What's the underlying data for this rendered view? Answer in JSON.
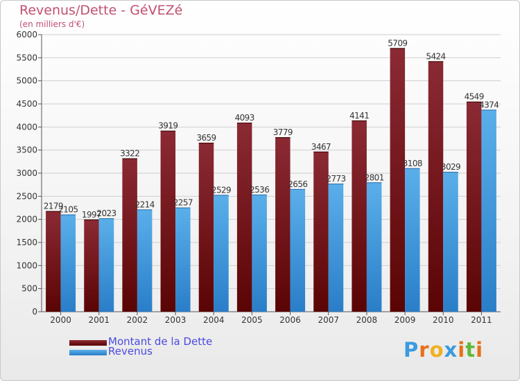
{
  "title": "Revenus/Dette - GéVEZé",
  "subtitle": "(en milliers d'€)",
  "logo": {
    "text": "Proxiti",
    "letter_colors": [
      "#3a9be0",
      "#e8701a",
      "#f0b020",
      "#3a9be0",
      "#e8701a",
      "#62b83a",
      "#e8701a"
    ]
  },
  "colors": {
    "dette_top": "#8b2a34",
    "dette_bottom": "#5a0404",
    "revenus_top": "#5aafea",
    "revenus_bottom": "#2a7ec8",
    "grid": "#cfcfcf",
    "title": "#c24f6f",
    "legend_text": "#4a4ae0"
  },
  "chart_data": {
    "type": "bar",
    "categories": [
      "2000",
      "2001",
      "2002",
      "2003",
      "2004",
      "2005",
      "2006",
      "2007",
      "2008",
      "2009",
      "2010",
      "2011"
    ],
    "series": [
      {
        "name": "Montant de la Dette",
        "values": [
          2179,
          1997,
          3322,
          3919,
          3659,
          4093,
          3779,
          3467,
          4141,
          5709,
          5424,
          4549
        ],
        "labels": [
          "2179",
          "1997",
          "3322",
          "3919",
          "3659",
          "4093",
          "3779",
          "3467",
          "4141",
          "5709",
          "5424",
          "4549"
        ]
      },
      {
        "name": "Revenus",
        "values": [
          2105,
          2023,
          2214,
          2257,
          2529,
          2536,
          2656,
          2773,
          2801,
          3108,
          3029,
          4374
        ],
        "labels": [
          "2105",
          "2023",
          "2214",
          "2257",
          "2529",
          "2536",
          "2656",
          "2773",
          "2801",
          "3108",
          "3029",
          "4374"
        ]
      }
    ],
    "ylim": [
      0,
      6000
    ],
    "yticks": [
      "0",
      "500",
      "1000",
      "1500",
      "2000",
      "2500",
      "3000",
      "3500",
      "4000",
      "4500",
      "5000",
      "5500",
      "6000"
    ],
    "grid": true,
    "legend_position": "bottom-left"
  }
}
